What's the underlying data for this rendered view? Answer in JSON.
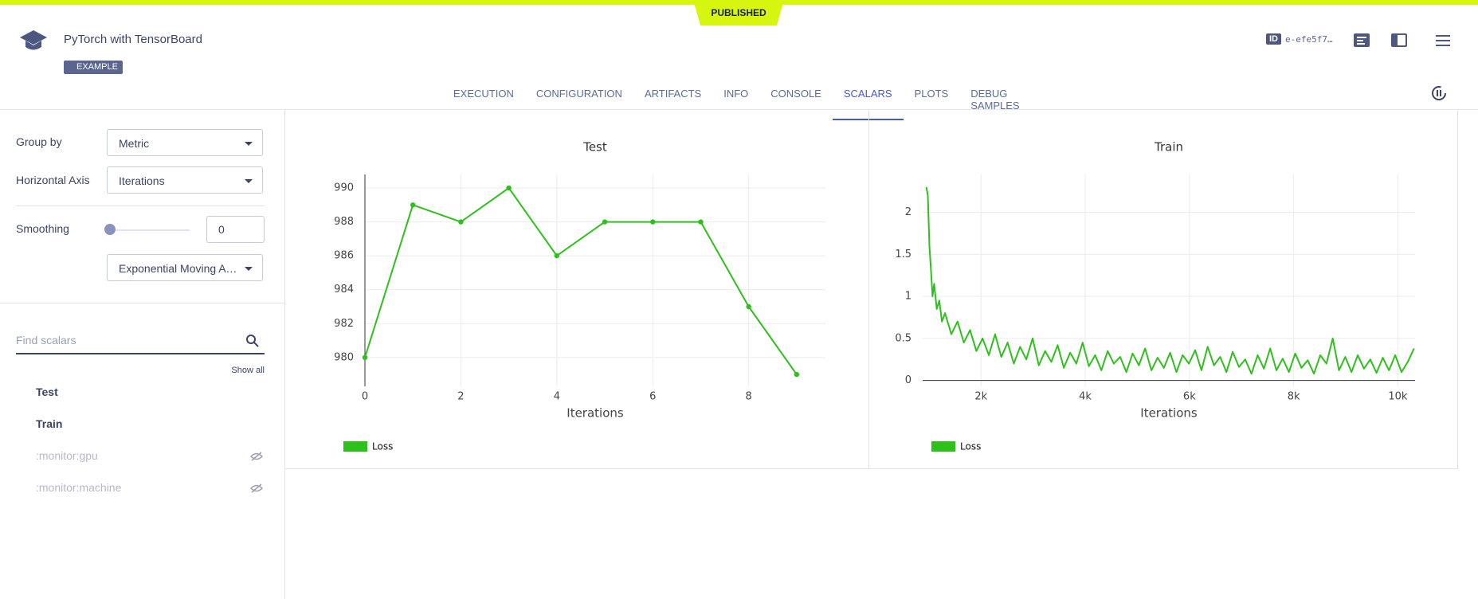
{
  "header": {
    "badge": "PUBLISHED",
    "title": "PyTorch with TensorBoard",
    "tag": "EXAMPLE",
    "id_label": "ID",
    "id": "e-efe5f7…"
  },
  "tabs": [
    "EXECUTION",
    "CONFIGURATION",
    "ARTIFACTS",
    "INFO",
    "CONSOLE",
    "SCALARS",
    "PLOTS",
    "DEBUG SAMPLES"
  ],
  "active_tab": 5,
  "sidebar": {
    "group_by_label": "Group by",
    "group_by": "Metric",
    "axis_label": "Horizontal Axis",
    "axis": "Iterations",
    "smoothing_label": "Smoothing",
    "smoothing": 0,
    "smoothing_method": "Exponential Moving Average",
    "search_placeholder": "Find scalars",
    "show_all": "Show all",
    "metrics": [
      {
        "name": "Test",
        "hidden": false
      },
      {
        "name": "Train",
        "hidden": false
      },
      {
        "name": ":monitor:gpu",
        "hidden": true
      },
      {
        "name": ":monitor:machine",
        "hidden": true
      }
    ]
  },
  "chart_data": [
    {
      "type": "line",
      "title": "Test",
      "x": [
        0,
        1,
        2,
        3,
        4,
        5,
        6,
        7,
        8,
        9
      ],
      "xlabel": "Iterations",
      "series": [
        {
          "name": "Loss",
          "color": "#2ec11c",
          "values": [
            980,
            989,
            988,
            990,
            986,
            988,
            988,
            988,
            983,
            979
          ]
        }
      ],
      "xlim": [
        0,
        9.6
      ],
      "ylim": [
        978.3,
        990.8
      ],
      "xticks": [
        0,
        2,
        4,
        6,
        8
      ],
      "yticks": [
        980,
        982,
        984,
        986,
        988,
        990
      ],
      "grid": true,
      "markers": true
    },
    {
      "type": "line",
      "title": "Train",
      "xlabel": "Iterations",
      "x": [
        950,
        980,
        1010,
        1040,
        1070,
        1100,
        1150,
        1200,
        1250,
        1310,
        1430,
        1550,
        1670,
        1790,
        1910,
        2030,
        2150,
        2270,
        2390,
        2510,
        2630,
        2750,
        2870,
        2990,
        3110,
        3230,
        3350,
        3470,
        3590,
        3710,
        3830,
        3950,
        4070,
        4190,
        4310,
        4430,
        4550,
        4670,
        4790,
        4910,
        5030,
        5150,
        5270,
        5390,
        5510,
        5630,
        5750,
        5870,
        5990,
        6110,
        6230,
        6350,
        6470,
        6590,
        6710,
        6830,
        6950,
        7070,
        7190,
        7310,
        7430,
        7550,
        7670,
        7790,
        7910,
        8030,
        8150,
        8270,
        8390,
        8510,
        8630,
        8750,
        8870,
        8990,
        9110,
        9230,
        9350,
        9470,
        9590,
        9710,
        9830,
        9950,
        10070,
        10190,
        10310
      ],
      "series": [
        {
          "name": "Loss",
          "color": "#2ec11c",
          "values": [
            2.3,
            2.2,
            1.6,
            1.3,
            1.0,
            1.15,
            0.85,
            0.95,
            0.7,
            0.8,
            0.55,
            0.7,
            0.45,
            0.6,
            0.35,
            0.5,
            0.3,
            0.55,
            0.28,
            0.45,
            0.2,
            0.4,
            0.25,
            0.5,
            0.18,
            0.35,
            0.22,
            0.42,
            0.15,
            0.33,
            0.2,
            0.45,
            0.17,
            0.3,
            0.12,
            0.35,
            0.2,
            0.28,
            0.1,
            0.32,
            0.18,
            0.38,
            0.12,
            0.27,
            0.15,
            0.33,
            0.1,
            0.3,
            0.2,
            0.36,
            0.12,
            0.4,
            0.18,
            0.28,
            0.1,
            0.34,
            0.16,
            0.25,
            0.08,
            0.3,
            0.14,
            0.38,
            0.12,
            0.26,
            0.1,
            0.32,
            0.15,
            0.24,
            0.08,
            0.3,
            0.2,
            0.5,
            0.12,
            0.28,
            0.1,
            0.3,
            0.14,
            0.25,
            0.09,
            0.27,
            0.12,
            0.3,
            0.1,
            0.22,
            0.38
          ]
        }
      ],
      "xlim": [
        880,
        10330
      ],
      "ylim": [
        -0.07,
        2.45
      ],
      "xticks": [
        {
          "value": 2000,
          "label": "2k"
        },
        {
          "value": 4000,
          "label": "4k"
        },
        {
          "value": 6000,
          "label": "6k"
        },
        {
          "value": 8000,
          "label": "8k"
        },
        {
          "value": 10000,
          "label": "10k"
        }
      ],
      "yticks": [
        0,
        0.5,
        1,
        1.5,
        2
      ],
      "grid": true,
      "markers": false
    }
  ]
}
